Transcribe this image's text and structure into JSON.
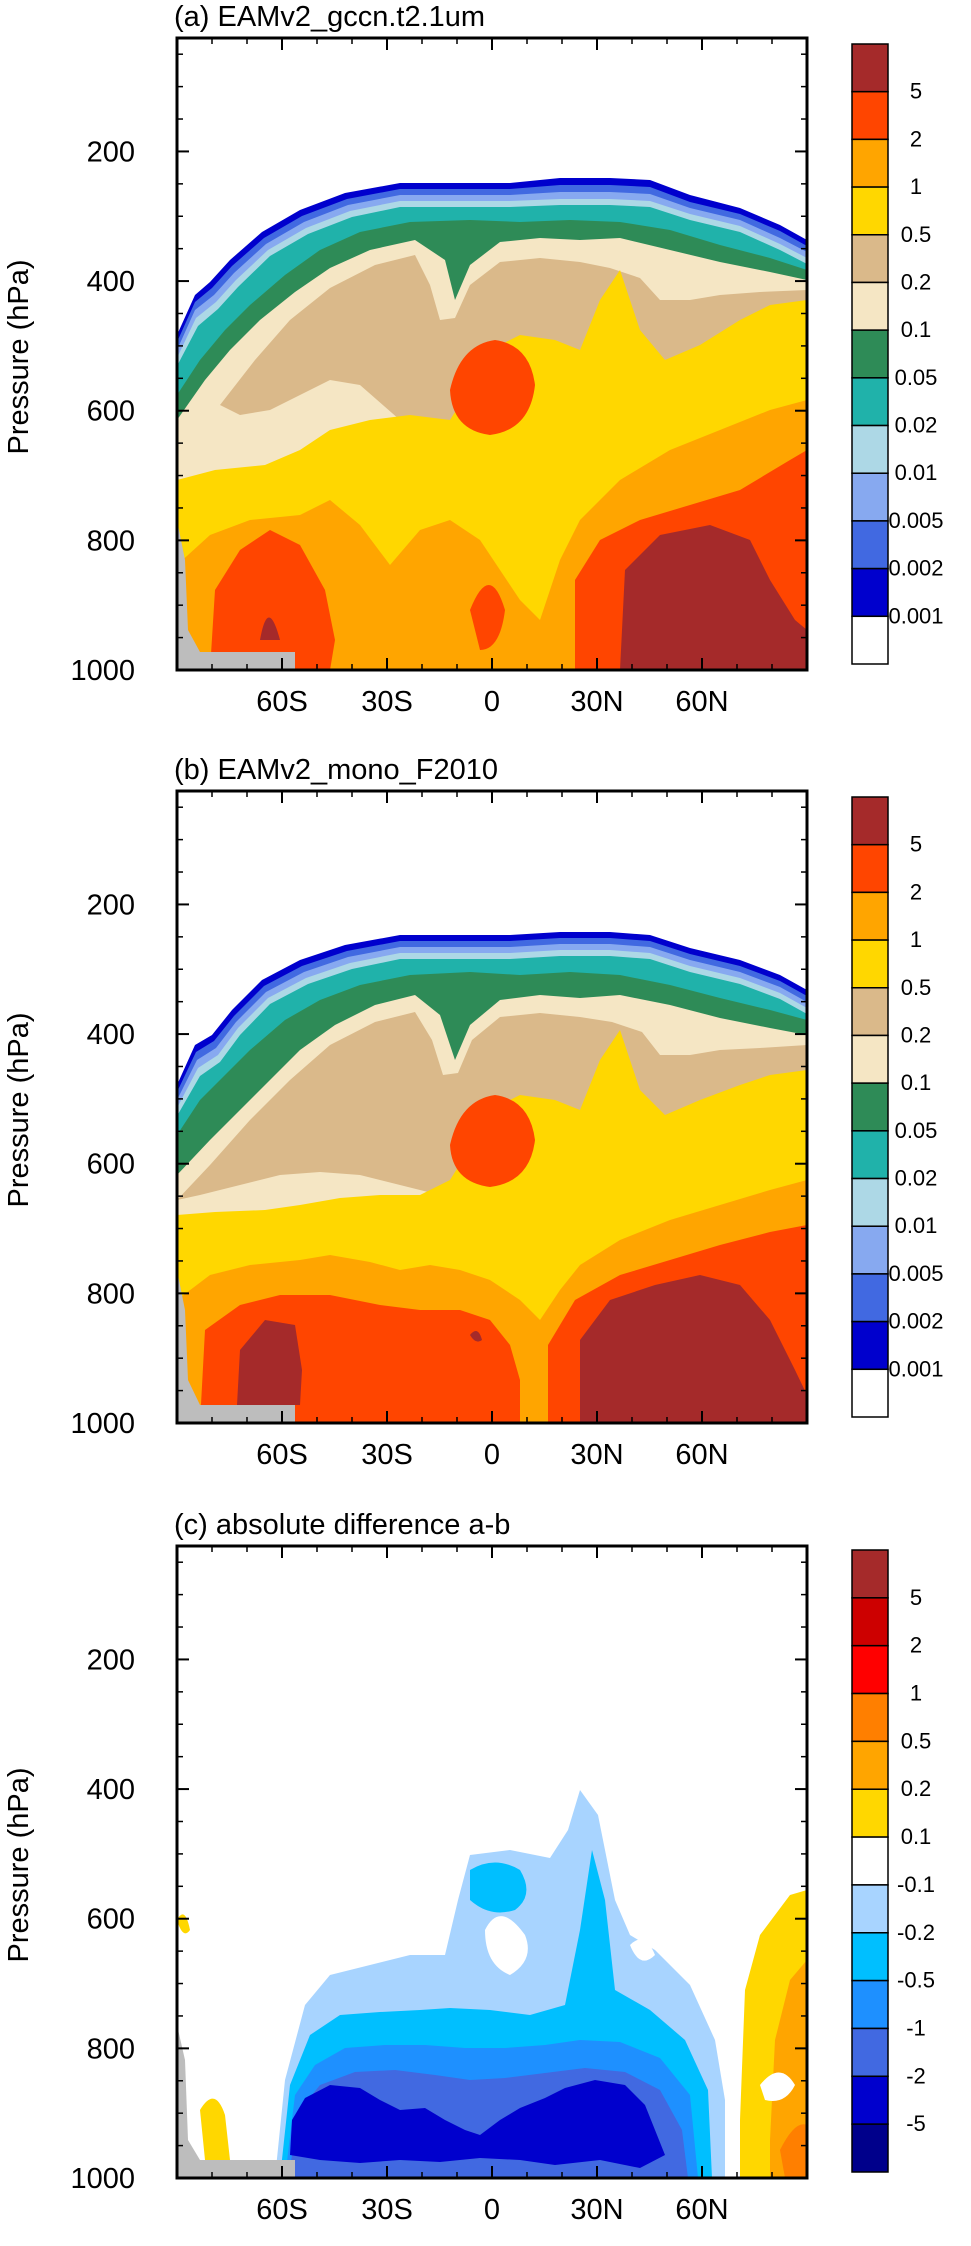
{
  "chart_data": [
    {
      "type": "heatmap",
      "title": "(a) EAMv2_gccn.t2.1um",
      "ylabel": "Pressure (hPa)",
      "ylim": [
        1000,
        50
      ],
      "x_ticks": [
        "60S",
        "30S",
        "0",
        "30N",
        "60N"
      ],
      "x_tick_values": [
        -60,
        -30,
        0,
        30,
        60
      ],
      "y_ticks": [
        "200",
        "400",
        "600",
        "800",
        "1000"
      ],
      "y_tick_values": [
        200,
        400,
        600,
        800,
        1000
      ],
      "legend": "right",
      "colorbar_labels": [
        "5",
        "2",
        "1",
        "0.5",
        "0.2",
        "0.1",
        "0.05",
        "0.02",
        "0.01",
        "0.005",
        "0.002",
        "0.001"
      ],
      "colorbar_colors": [
        "#a52a2a",
        "#ff4500",
        "#ffa500",
        "#ffd700",
        "#dab98a",
        "#f5e6c4",
        "#2e8b57",
        "#20b2aa",
        "#add8e6",
        "#87a9f0",
        "#4169e1",
        "#0000cd",
        "#ffffff"
      ]
    },
    {
      "type": "heatmap",
      "title": "(b) EAMv2_mono_F2010",
      "ylabel": "Pressure (hPa)",
      "ylim": [
        1000,
        50
      ],
      "x_ticks": [
        "60S",
        "30S",
        "0",
        "30N",
        "60N"
      ],
      "x_tick_values": [
        -60,
        -30,
        0,
        30,
        60
      ],
      "y_ticks": [
        "200",
        "400",
        "600",
        "800",
        "1000"
      ],
      "y_tick_values": [
        200,
        400,
        600,
        800,
        1000
      ],
      "legend": "right",
      "colorbar_labels": [
        "5",
        "2",
        "1",
        "0.5",
        "0.2",
        "0.1",
        "0.05",
        "0.02",
        "0.01",
        "0.005",
        "0.002",
        "0.001"
      ],
      "colorbar_colors": [
        "#a52a2a",
        "#ff4500",
        "#ffa500",
        "#ffd700",
        "#dab98a",
        "#f5e6c4",
        "#2e8b57",
        "#20b2aa",
        "#add8e6",
        "#87a9f0",
        "#4169e1",
        "#0000cd",
        "#ffffff"
      ]
    },
    {
      "type": "heatmap",
      "title": "(c) absolute difference a-b",
      "ylabel": "Pressure (hPa)",
      "ylim": [
        1000,
        50
      ],
      "x_ticks": [
        "60S",
        "30S",
        "0",
        "30N",
        "60N"
      ],
      "x_tick_values": [
        -60,
        -30,
        0,
        30,
        60
      ],
      "y_ticks": [
        "200",
        "400",
        "600",
        "800",
        "1000"
      ],
      "y_tick_values": [
        200,
        400,
        600,
        800,
        1000
      ],
      "legend": "right",
      "colorbar_labels": [
        "5",
        "2",
        "1",
        "0.5",
        "0.2",
        "0.1",
        "-0.1",
        "-0.2",
        "-0.5",
        "-1",
        "-2",
        "-5"
      ],
      "colorbar_colors": [
        "#a52a2a",
        "#cd0000",
        "#ff0000",
        "#ff7f00",
        "#ffa500",
        "#ffd700",
        "#ffffff",
        "#a8d4ff",
        "#00bfff",
        "#1e90ff",
        "#4169e1",
        "#0000cd",
        "#00008b"
      ]
    }
  ]
}
